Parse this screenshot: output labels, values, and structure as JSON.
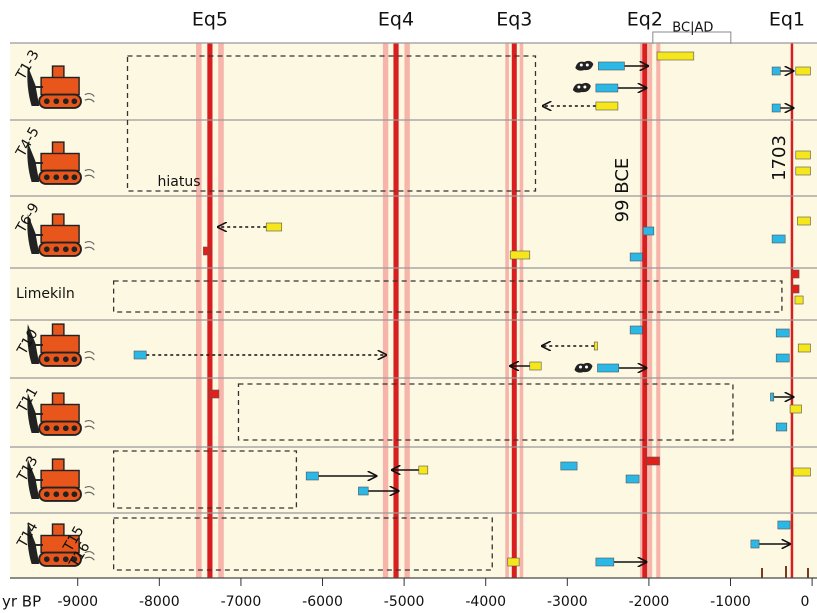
{
  "chart_data": {
    "type": "timeline",
    "x_label": "yr BP",
    "xlim": [
      -9830,
      60
    ],
    "xticks": [
      -9000,
      -8000,
      -7000,
      -6000,
      -5000,
      -4000,
      -3000,
      -2000,
      -1000,
      0
    ],
    "bc_ad": "BC|AD",
    "colors": {
      "blue": "#2bb8e6",
      "yellow": "#f6e61c",
      "red": "#e0201a",
      "band": "#f6b4aa",
      "line": "#d81e1e"
    },
    "rows": [
      [
        "T1-3"
      ],
      [
        "T4-5"
      ],
      [
        "T6-9"
      ],
      [
        "Limekiln"
      ],
      [
        "T10"
      ],
      [
        "T11"
      ],
      [
        "T13"
      ],
      [
        "T14",
        "T15",
        "T16"
      ]
    ],
    "earthquakes": [
      {
        "label": "Eq5",
        "range": [
          -7550,
          -7210
        ],
        "center": -7380
      },
      {
        "label": "Eq4",
        "range": [
          -5260,
          -4930
        ],
        "center": -5100
      },
      {
        "label": "Eq3",
        "range": [
          -3760,
          -3540
        ],
        "center": -3650
      },
      {
        "label": "Eq2",
        "range": [
          -2110,
          -1860
        ],
        "center": -2050,
        "date_label": "99 BCE"
      },
      {
        "label": "Eq1",
        "center": -247,
        "date_label": "1703"
      }
    ],
    "boxes": [
      {
        "row": 0,
        "range": [
          -8390,
          -3390
        ],
        "label": "hiatus"
      },
      {
        "row": 3,
        "range": [
          -8560,
          -370
        ]
      },
      {
        "row": 5,
        "range": [
          -7030,
          -970
        ]
      },
      {
        "row": 6,
        "range": [
          -8560,
          -6320
        ]
      },
      {
        "row": 7,
        "range": [
          -8560,
          -3920
        ]
      }
    ],
    "samples": [
      {
        "row": 0,
        "color": "yellow",
        "range": [
          -1900,
          -1450
        ]
      },
      {
        "row": 0,
        "color": "blue",
        "range": [
          -2620,
          -2300
        ],
        "arrow_to": -2010
      },
      {
        "row": 0,
        "color": "blue",
        "range": [
          -2650,
          -2380
        ],
        "arrow_to": -2030
      },
      {
        "row": 0,
        "color": "yellow",
        "range": [
          -2650,
          -2380
        ],
        "arrow_to": -3300,
        "dashed": true
      },
      {
        "row": 0,
        "color": "yellow",
        "range": [
          -200,
          -20
        ]
      },
      {
        "row": 0,
        "color": "blue",
        "range": [
          -490,
          -390
        ],
        "arrow_to": -230
      },
      {
        "row": 0,
        "color": "blue",
        "range": [
          -490,
          -390
        ],
        "arrow_to": -230
      },
      {
        "row": 1,
        "color": "yellow",
        "range": [
          -200,
          -20
        ]
      },
      {
        "row": 1,
        "color": "yellow",
        "range": [
          -200,
          -20
        ]
      },
      {
        "row": 2,
        "color": "yellow",
        "range": [
          -6690,
          -6500
        ],
        "arrow_to": -7280,
        "dashed": true
      },
      {
        "row": 2,
        "color": "red",
        "range": [
          -7460,
          -7380
        ]
      },
      {
        "row": 2,
        "color": "yellow",
        "range": [
          -3700,
          -3460
        ]
      },
      {
        "row": 2,
        "color": "blue",
        "range": [
          -2070,
          -1940
        ]
      },
      {
        "row": 2,
        "color": "blue",
        "range": [
          -2230,
          -2080
        ]
      },
      {
        "row": 2,
        "color": "yellow",
        "range": [
          -180,
          -20
        ]
      },
      {
        "row": 2,
        "color": "blue",
        "range": [
          -490,
          -330
        ]
      },
      {
        "row": 3,
        "color": "red",
        "range": [
          -250,
          -160
        ]
      },
      {
        "row": 3,
        "color": "red",
        "range": [
          -250,
          -160
        ]
      },
      {
        "row": 3,
        "color": "yellow",
        "range": [
          -210,
          -110
        ]
      },
      {
        "row": 4,
        "color": "blue",
        "range": [
          -8310,
          -8160
        ],
        "arrow_to": -5220,
        "dashed": true
      },
      {
        "row": 4,
        "color": "blue",
        "range": [
          -2230,
          -2080
        ]
      },
      {
        "row": 4,
        "color": "yellow",
        "range": [
          -2670,
          -2630
        ],
        "arrow_to": -3310,
        "dashed": true
      },
      {
        "row": 4,
        "color": "yellow",
        "range": [
          -3460,
          -3320
        ],
        "arrow_to": -3700
      },
      {
        "row": 4,
        "color": "blue",
        "range": [
          -2630,
          -2370
        ],
        "arrow_to": -2030
      },
      {
        "row": 4,
        "color": "blue",
        "range": [
          -440,
          -280
        ]
      },
      {
        "row": 4,
        "color": "blue",
        "range": [
          -440,
          -280
        ]
      },
      {
        "row": 4,
        "color": "yellow",
        "range": [
          -170,
          -20
        ]
      },
      {
        "row": 5,
        "color": "red",
        "range": [
          -7390,
          -7270
        ]
      },
      {
        "row": 5,
        "color": "blue",
        "range": [
          -510,
          -470
        ],
        "arrow_to": -230
      },
      {
        "row": 5,
        "color": "yellow",
        "range": [
          -270,
          -130
        ]
      },
      {
        "row": 5,
        "color": "blue",
        "range": [
          -440,
          -310
        ]
      },
      {
        "row": 6,
        "color": "blue",
        "range": [
          -6200,
          -6050
        ],
        "arrow_to": -5340
      },
      {
        "row": 6,
        "color": "blue",
        "range": [
          -5560,
          -5440
        ],
        "arrow_to": -5070
      },
      {
        "row": 6,
        "color": "yellow",
        "range": [
          -4820,
          -4710
        ],
        "arrow_to": -5150
      },
      {
        "row": 6,
        "color": "blue",
        "range": [
          -3080,
          -2880
        ]
      },
      {
        "row": 6,
        "color": "blue",
        "range": [
          -2280,
          -2120
        ]
      },
      {
        "row": 6,
        "color": "red",
        "range": [
          -2030,
          -1870
        ]
      },
      {
        "row": 6,
        "color": "yellow",
        "range": [
          -230,
          -20
        ]
      },
      {
        "row": 7,
        "color": "yellow",
        "range": [
          -3730,
          -3590
        ]
      },
      {
        "row": 7,
        "color": "blue",
        "range": [
          -2650,
          -2430
        ],
        "arrow_to": -2030
      },
      {
        "row": 7,
        "color": "blue",
        "range": [
          -420,
          -270
        ]
      },
      {
        "row": 7,
        "color": "blue",
        "range": [
          -750,
          -650
        ],
        "arrow_to": -270
      }
    ]
  }
}
